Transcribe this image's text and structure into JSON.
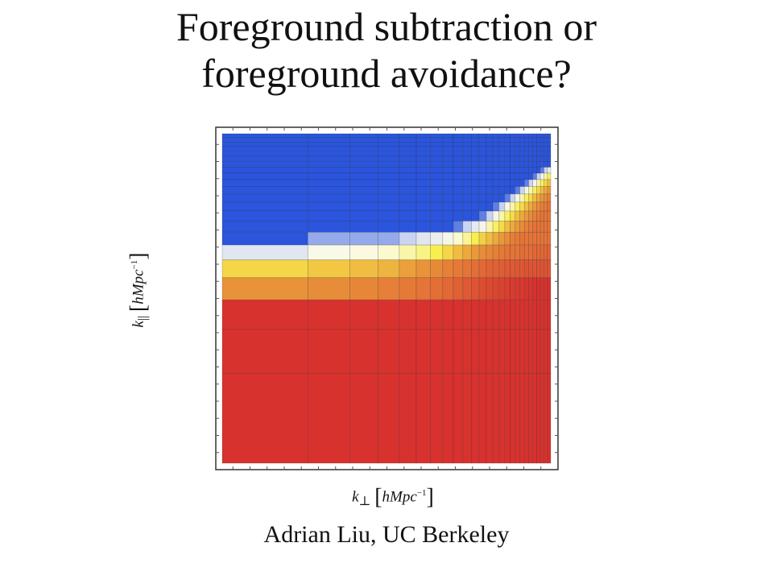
{
  "slide": {
    "title_line1": "Foreground subtraction or",
    "title_line2": "foreground avoidance?",
    "author": "Adrian Liu, UC Berkeley"
  },
  "chart_data": {
    "type": "heatmap",
    "title": "",
    "xlabel": {
      "symbol": "k",
      "sub": "⊥",
      "unit": "hMpc",
      "exp": "−1"
    },
    "ylabel": {
      "symbol": "k",
      "sub": "||",
      "unit": "hMpc",
      "exp": "−1"
    },
    "xscale": "log",
    "yscale": "log",
    "grid": true,
    "legend": "none",
    "n_cols": 26,
    "n_rows": 22,
    "row_order": "top-to-bottom",
    "colormap": [
      "#2a55dc",
      "#dbe2f4",
      "#fbfbe6",
      "#f8ee4e",
      "#ea9d3a",
      "#e26a36",
      "#d7322e"
    ],
    "value_range": [
      0,
      1
    ],
    "values": [
      [
        0,
        0,
        0,
        0,
        0,
        0,
        0,
        0,
        0,
        0,
        0,
        0,
        0,
        0,
        0,
        0,
        0,
        0,
        0,
        0,
        0,
        0,
        0,
        0,
        0,
        0
      ],
      [
        0,
        0,
        0,
        0,
        0,
        0,
        0,
        0,
        0,
        0,
        0,
        0,
        0,
        0,
        0,
        0,
        0,
        0,
        0,
        0,
        0,
        0,
        0,
        0,
        0,
        0
      ],
      [
        0,
        0,
        0,
        0,
        0,
        0,
        0,
        0,
        0,
        0,
        0,
        0,
        0,
        0,
        0,
        0,
        0,
        0,
        0,
        0,
        0,
        0,
        0,
        0,
        0,
        0
      ],
      [
        0,
        0,
        0,
        0,
        0,
        0,
        0,
        0,
        0,
        0,
        0,
        0,
        0,
        0,
        0,
        0,
        0,
        0,
        0,
        0,
        0,
        0,
        0,
        0,
        0,
        0
      ],
      [
        0,
        0,
        0,
        0,
        0,
        0,
        0,
        0,
        0,
        0,
        0,
        0,
        0,
        0,
        0,
        0,
        0,
        0,
        0,
        0,
        0,
        0,
        0,
        0,
        0,
        0
      ],
      [
        0,
        0,
        0,
        0,
        0,
        0,
        0,
        0,
        0,
        0,
        0,
        0,
        0,
        0,
        0,
        0,
        0,
        0,
        0,
        0,
        0,
        0,
        0,
        0,
        0,
        0
      ],
      [
        0,
        0,
        0,
        0,
        0,
        0,
        0,
        0,
        0,
        0,
        0,
        0,
        0,
        0,
        0,
        0,
        0,
        0,
        0,
        0,
        0,
        0,
        0,
        0,
        0,
        0
      ],
      [
        0,
        0,
        0,
        0,
        0,
        0,
        0,
        0,
        0,
        0,
        0,
        0,
        0,
        0,
        0,
        0,
        0,
        0,
        0,
        0,
        0,
        0,
        0,
        0.05,
        0.15,
        0.22
      ],
      [
        0,
        0,
        0,
        0,
        0,
        0,
        0,
        0,
        0,
        0,
        0,
        0,
        0,
        0,
        0,
        0,
        0,
        0,
        0,
        0,
        0,
        0.05,
        0.15,
        0.3,
        0.4,
        0.48
      ],
      [
        0,
        0,
        0,
        0,
        0,
        0,
        0,
        0,
        0,
        0,
        0,
        0,
        0,
        0,
        0,
        0,
        0,
        0,
        0,
        0.05,
        0.15,
        0.3,
        0.4,
        0.48,
        0.54,
        0.6
      ],
      [
        0,
        0,
        0,
        0,
        0,
        0,
        0,
        0,
        0,
        0,
        0,
        0,
        0,
        0,
        0,
        0,
        0,
        0.05,
        0.15,
        0.3,
        0.4,
        0.48,
        0.54,
        0.6,
        0.64,
        0.68
      ],
      [
        0,
        0,
        0,
        0,
        0,
        0,
        0,
        0,
        0,
        0,
        0,
        0,
        0,
        0,
        0,
        0.05,
        0.15,
        0.3,
        0.4,
        0.48,
        0.54,
        0.6,
        0.64,
        0.68,
        0.72,
        0.76
      ],
      [
        0,
        0,
        0,
        0,
        0,
        0,
        0,
        0,
        0,
        0,
        0,
        0,
        0,
        0.05,
        0.15,
        0.3,
        0.4,
        0.48,
        0.54,
        0.6,
        0.64,
        0.68,
        0.72,
        0.76,
        0.78,
        0.8
      ],
      [
        0,
        0,
        0,
        0,
        0,
        0,
        0,
        0,
        0,
        0,
        0,
        0.05,
        0.15,
        0.3,
        0.4,
        0.48,
        0.54,
        0.6,
        0.64,
        0.68,
        0.72,
        0.76,
        0.78,
        0.8,
        0.8,
        0.8
      ],
      [
        0,
        0,
        0,
        0,
        0,
        0,
        0,
        0,
        0.05,
        0.15,
        0.22,
        0.3,
        0.4,
        0.48,
        0.54,
        0.6,
        0.64,
        0.68,
        0.72,
        0.76,
        0.78,
        0.8,
        0.8,
        0.8,
        0.8,
        0.8
      ],
      [
        0,
        0.1,
        0.1,
        0.1,
        0.15,
        0.2,
        0.25,
        0.3,
        0.36,
        0.42,
        0.5,
        0.56,
        0.6,
        0.64,
        0.68,
        0.72,
        0.76,
        0.78,
        0.8,
        0.8,
        0.8,
        0.8,
        0.8,
        0.8,
        0.8,
        0.8
      ],
      [
        0.2,
        0.32,
        0.34,
        0.36,
        0.4,
        0.44,
        0.5,
        0.55,
        0.6,
        0.64,
        0.68,
        0.72,
        0.74,
        0.76,
        0.78,
        0.8,
        0.8,
        0.8,
        0.82,
        0.82,
        0.82,
        0.84,
        0.84,
        0.84,
        0.85,
        0.85
      ],
      [
        0.55,
        0.58,
        0.6,
        0.62,
        0.66,
        0.7,
        0.73,
        0.76,
        0.78,
        0.8,
        0.82,
        0.84,
        0.85,
        0.86,
        0.87,
        0.88,
        0.88,
        0.89,
        0.89,
        0.9,
        0.9,
        0.9,
        0.9,
        0.9,
        0.9,
        0.9
      ],
      [
        0.7,
        0.72,
        0.74,
        0.76,
        0.78,
        0.8,
        0.82,
        0.84,
        0.86,
        0.88,
        0.9,
        0.92,
        0.93,
        0.94,
        0.95,
        0.96,
        0.97,
        0.98,
        0.98,
        0.99,
        0.99,
        1,
        1,
        1,
        1,
        1
      ],
      [
        1,
        1,
        1,
        1,
        1,
        1,
        1,
        1,
        1,
        1,
        1,
        1,
        1,
        1,
        1,
        1,
        1,
        1,
        1,
        1,
        1,
        1,
        1,
        1,
        1,
        1
      ],
      [
        1,
        1,
        1,
        1,
        1,
        1,
        1,
        1,
        1,
        1,
        1,
        1,
        1,
        1,
        1,
        1,
        1,
        1,
        1,
        1,
        1,
        1,
        1,
        1,
        1,
        1
      ],
      [
        1,
        1,
        1,
        1,
        1,
        1,
        1,
        1,
        1,
        1,
        1,
        1,
        1,
        1,
        1,
        1,
        1,
        1,
        1,
        1,
        1,
        1,
        1,
        1,
        1,
        1
      ]
    ]
  }
}
